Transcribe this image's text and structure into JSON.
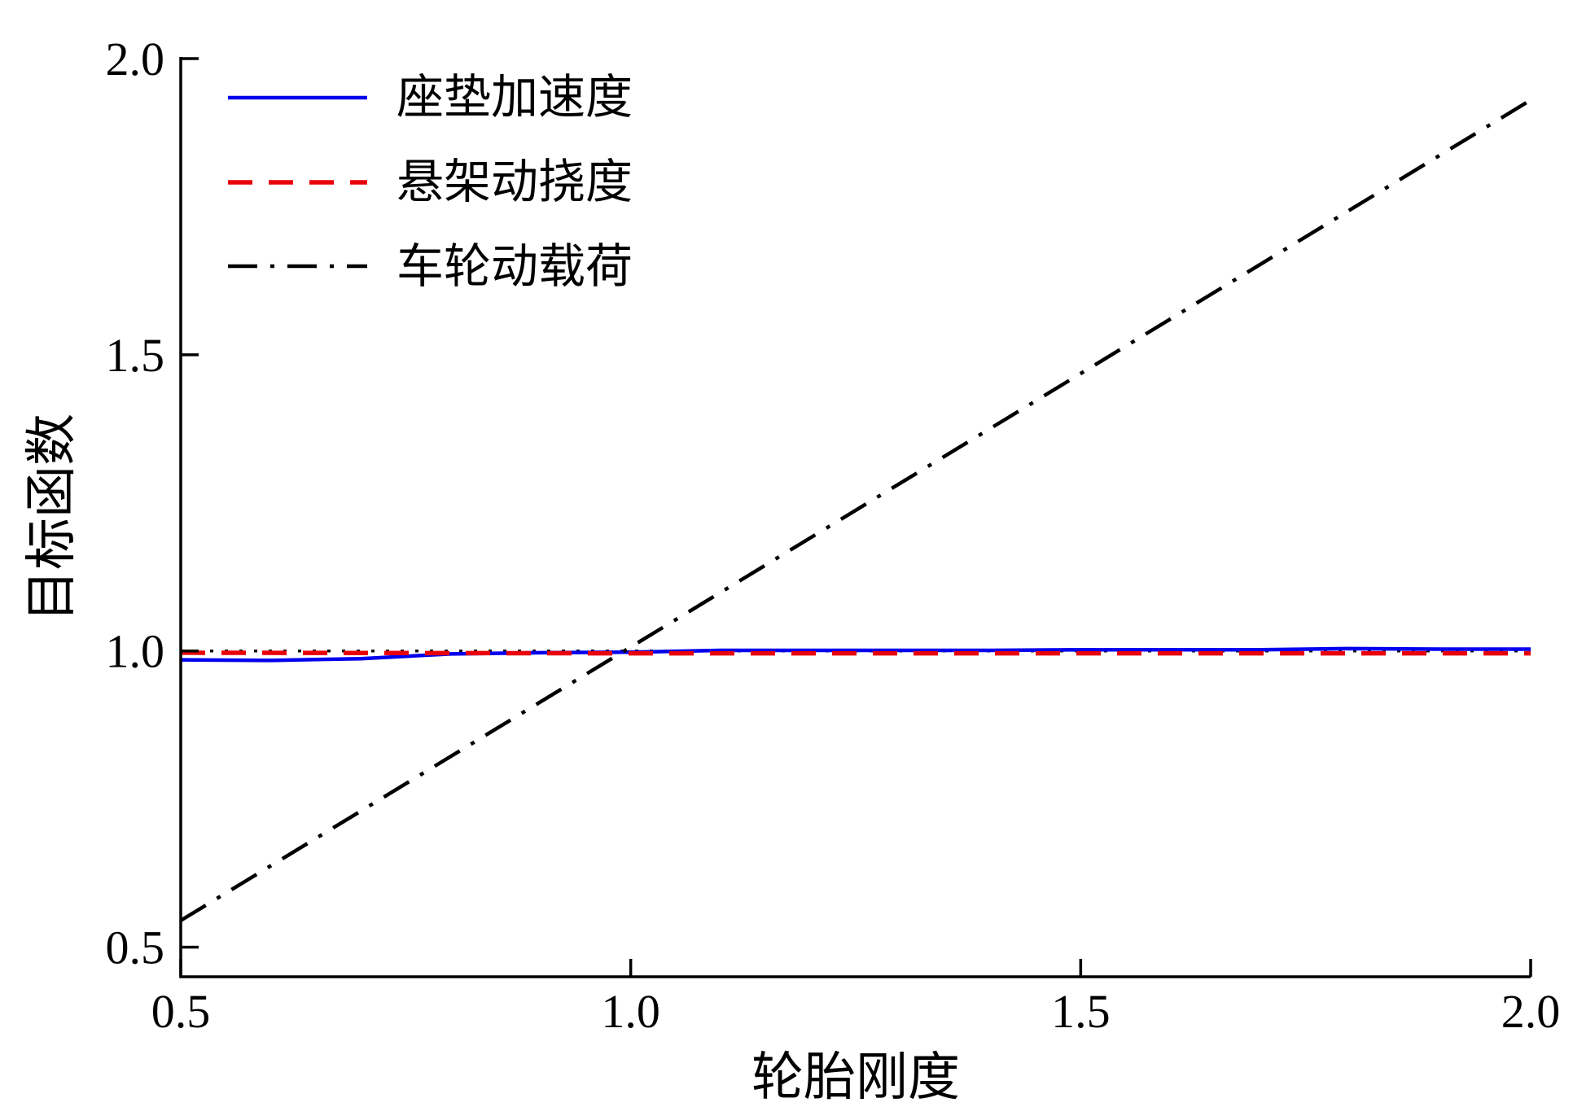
{
  "chart_data": {
    "type": "line",
    "title": "",
    "xlabel": "轮胎刚度",
    "ylabel": "目标函数",
    "xlim": [
      0.5,
      2.0
    ],
    "ylim": [
      0.45,
      2.0
    ],
    "grid": false,
    "legend_position": "upper-left",
    "axis_color": "#000000",
    "background_color": "#ffffff",
    "xticks": [
      {
        "v": 0.5,
        "label": "0.5"
      },
      {
        "v": 1.0,
        "label": "1.0"
      },
      {
        "v": 1.5,
        "label": "1.5"
      },
      {
        "v": 2.0,
        "label": "2.0"
      }
    ],
    "yticks": [
      {
        "v": 0.5,
        "label": "0.5"
      },
      {
        "v": 1.0,
        "label": "1.0"
      },
      {
        "v": 1.5,
        "label": "1.5"
      },
      {
        "v": 2.0,
        "label": "2.0"
      }
    ],
    "series": [
      {
        "name": "座垫加速度",
        "color": "#0000ee",
        "style": "solid",
        "width": 4.5,
        "x": [
          0.5,
          0.6,
          0.7,
          0.8,
          0.9,
          1.0,
          1.1,
          1.2,
          1.3,
          1.4,
          1.5,
          1.6,
          1.7,
          1.8,
          1.9,
          2.0
        ],
        "y": [
          0.985,
          0.984,
          0.987,
          0.995,
          0.997,
          0.998,
          1.001,
          1.001,
          1.001,
          1.001,
          1.002,
          1.002,
          1.002,
          1.004,
          1.003,
          1.003
        ]
      },
      {
        "name": "悬架动挠度",
        "color": "#e8000b",
        "style": "dashed",
        "width": 5.5,
        "x": [
          0.5,
          1.0,
          1.5,
          2.0
        ],
        "y": [
          0.997,
          0.996,
          0.996,
          0.996
        ]
      },
      {
        "name": "车轮动载荷",
        "color": "#000000",
        "style": "dashdot",
        "width": 4.5,
        "x": [
          0.5,
          2.0
        ],
        "y": [
          0.545,
          1.93
        ]
      }
    ],
    "baseline": {
      "y": 1.0,
      "color": "#111111",
      "style": "dotted",
      "width": 3.5
    }
  }
}
